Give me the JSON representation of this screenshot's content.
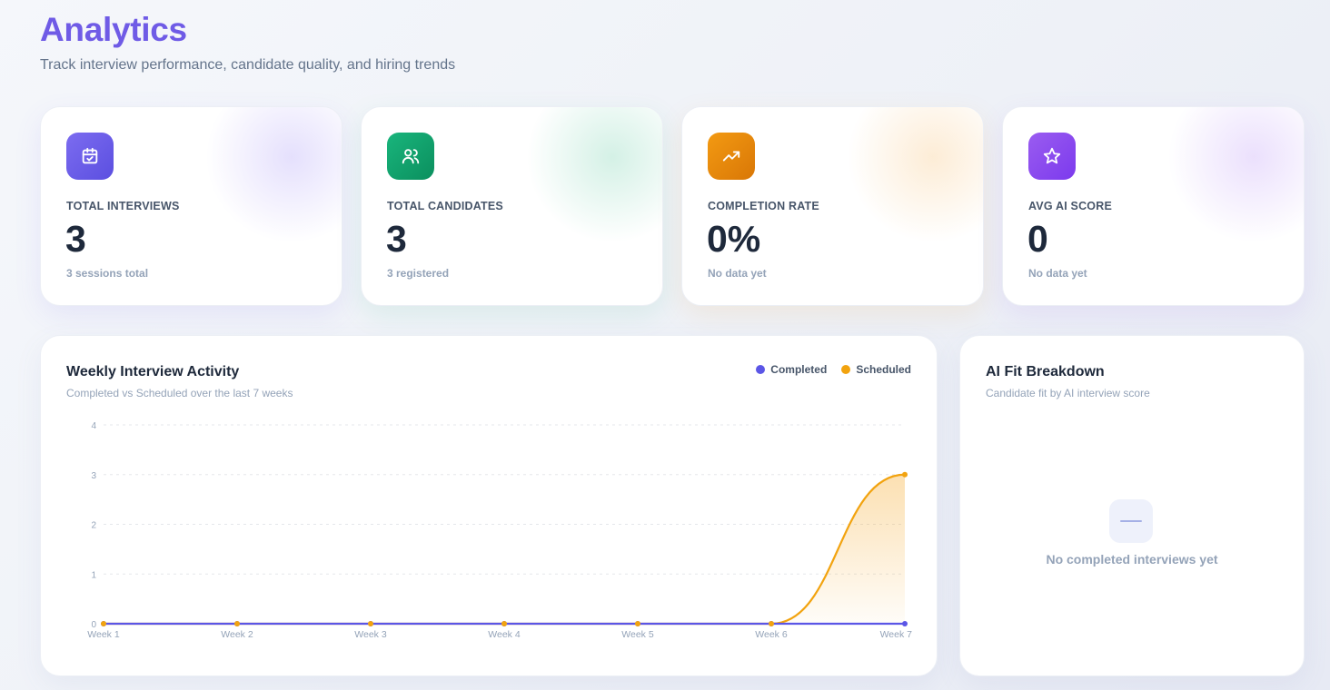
{
  "header": {
    "title": "Analytics",
    "subtitle": "Track interview performance, candidate quality, and hiring trends"
  },
  "stats": [
    {
      "icon": "calendar-check-icon",
      "label": "TOTAL INTERVIEWS",
      "value": "3",
      "sub": "3 sessions total",
      "color": "#6d5ce8"
    },
    {
      "icon": "users-icon",
      "label": "TOTAL CANDIDATES",
      "value": "3",
      "sub": "3 registered",
      "color": "#10a36e"
    },
    {
      "icon": "trending-up-icon",
      "label": "COMPLETION RATE",
      "value": "0%",
      "sub": "No data yet",
      "color": "#e58a0c"
    },
    {
      "icon": "star-icon",
      "label": "AVG AI SCORE",
      "value": "0",
      "sub": "No data yet",
      "color": "#8b4fe8"
    }
  ],
  "activity": {
    "title": "Weekly Interview Activity",
    "subtitle": "Completed vs Scheduled over the last 7 weeks",
    "legend": [
      {
        "name": "Completed",
        "color": "#5b56e6"
      },
      {
        "name": "Scheduled",
        "color": "#f2a30f"
      }
    ]
  },
  "chart_data": {
    "type": "area",
    "categories": [
      "Week 1",
      "Week 2",
      "Week 3",
      "Week 4",
      "Week 5",
      "Week 6",
      "Week 7"
    ],
    "series": [
      {
        "name": "Completed",
        "values": [
          0,
          0,
          0,
          0,
          0,
          0,
          0
        ],
        "color": "#5b56e6"
      },
      {
        "name": "Scheduled",
        "values": [
          0,
          0,
          0,
          0,
          0,
          0,
          3
        ],
        "color": "#f2a30f"
      }
    ],
    "yticks": [
      0,
      1,
      2,
      3,
      4
    ],
    "ylim": [
      0,
      4
    ],
    "grid": true,
    "legend": "top-right"
  },
  "breakdown": {
    "title": "AI Fit Breakdown",
    "subtitle": "Candidate fit by AI interview score",
    "empty_icon": "dash-icon",
    "empty_text": "No completed interviews yet"
  }
}
